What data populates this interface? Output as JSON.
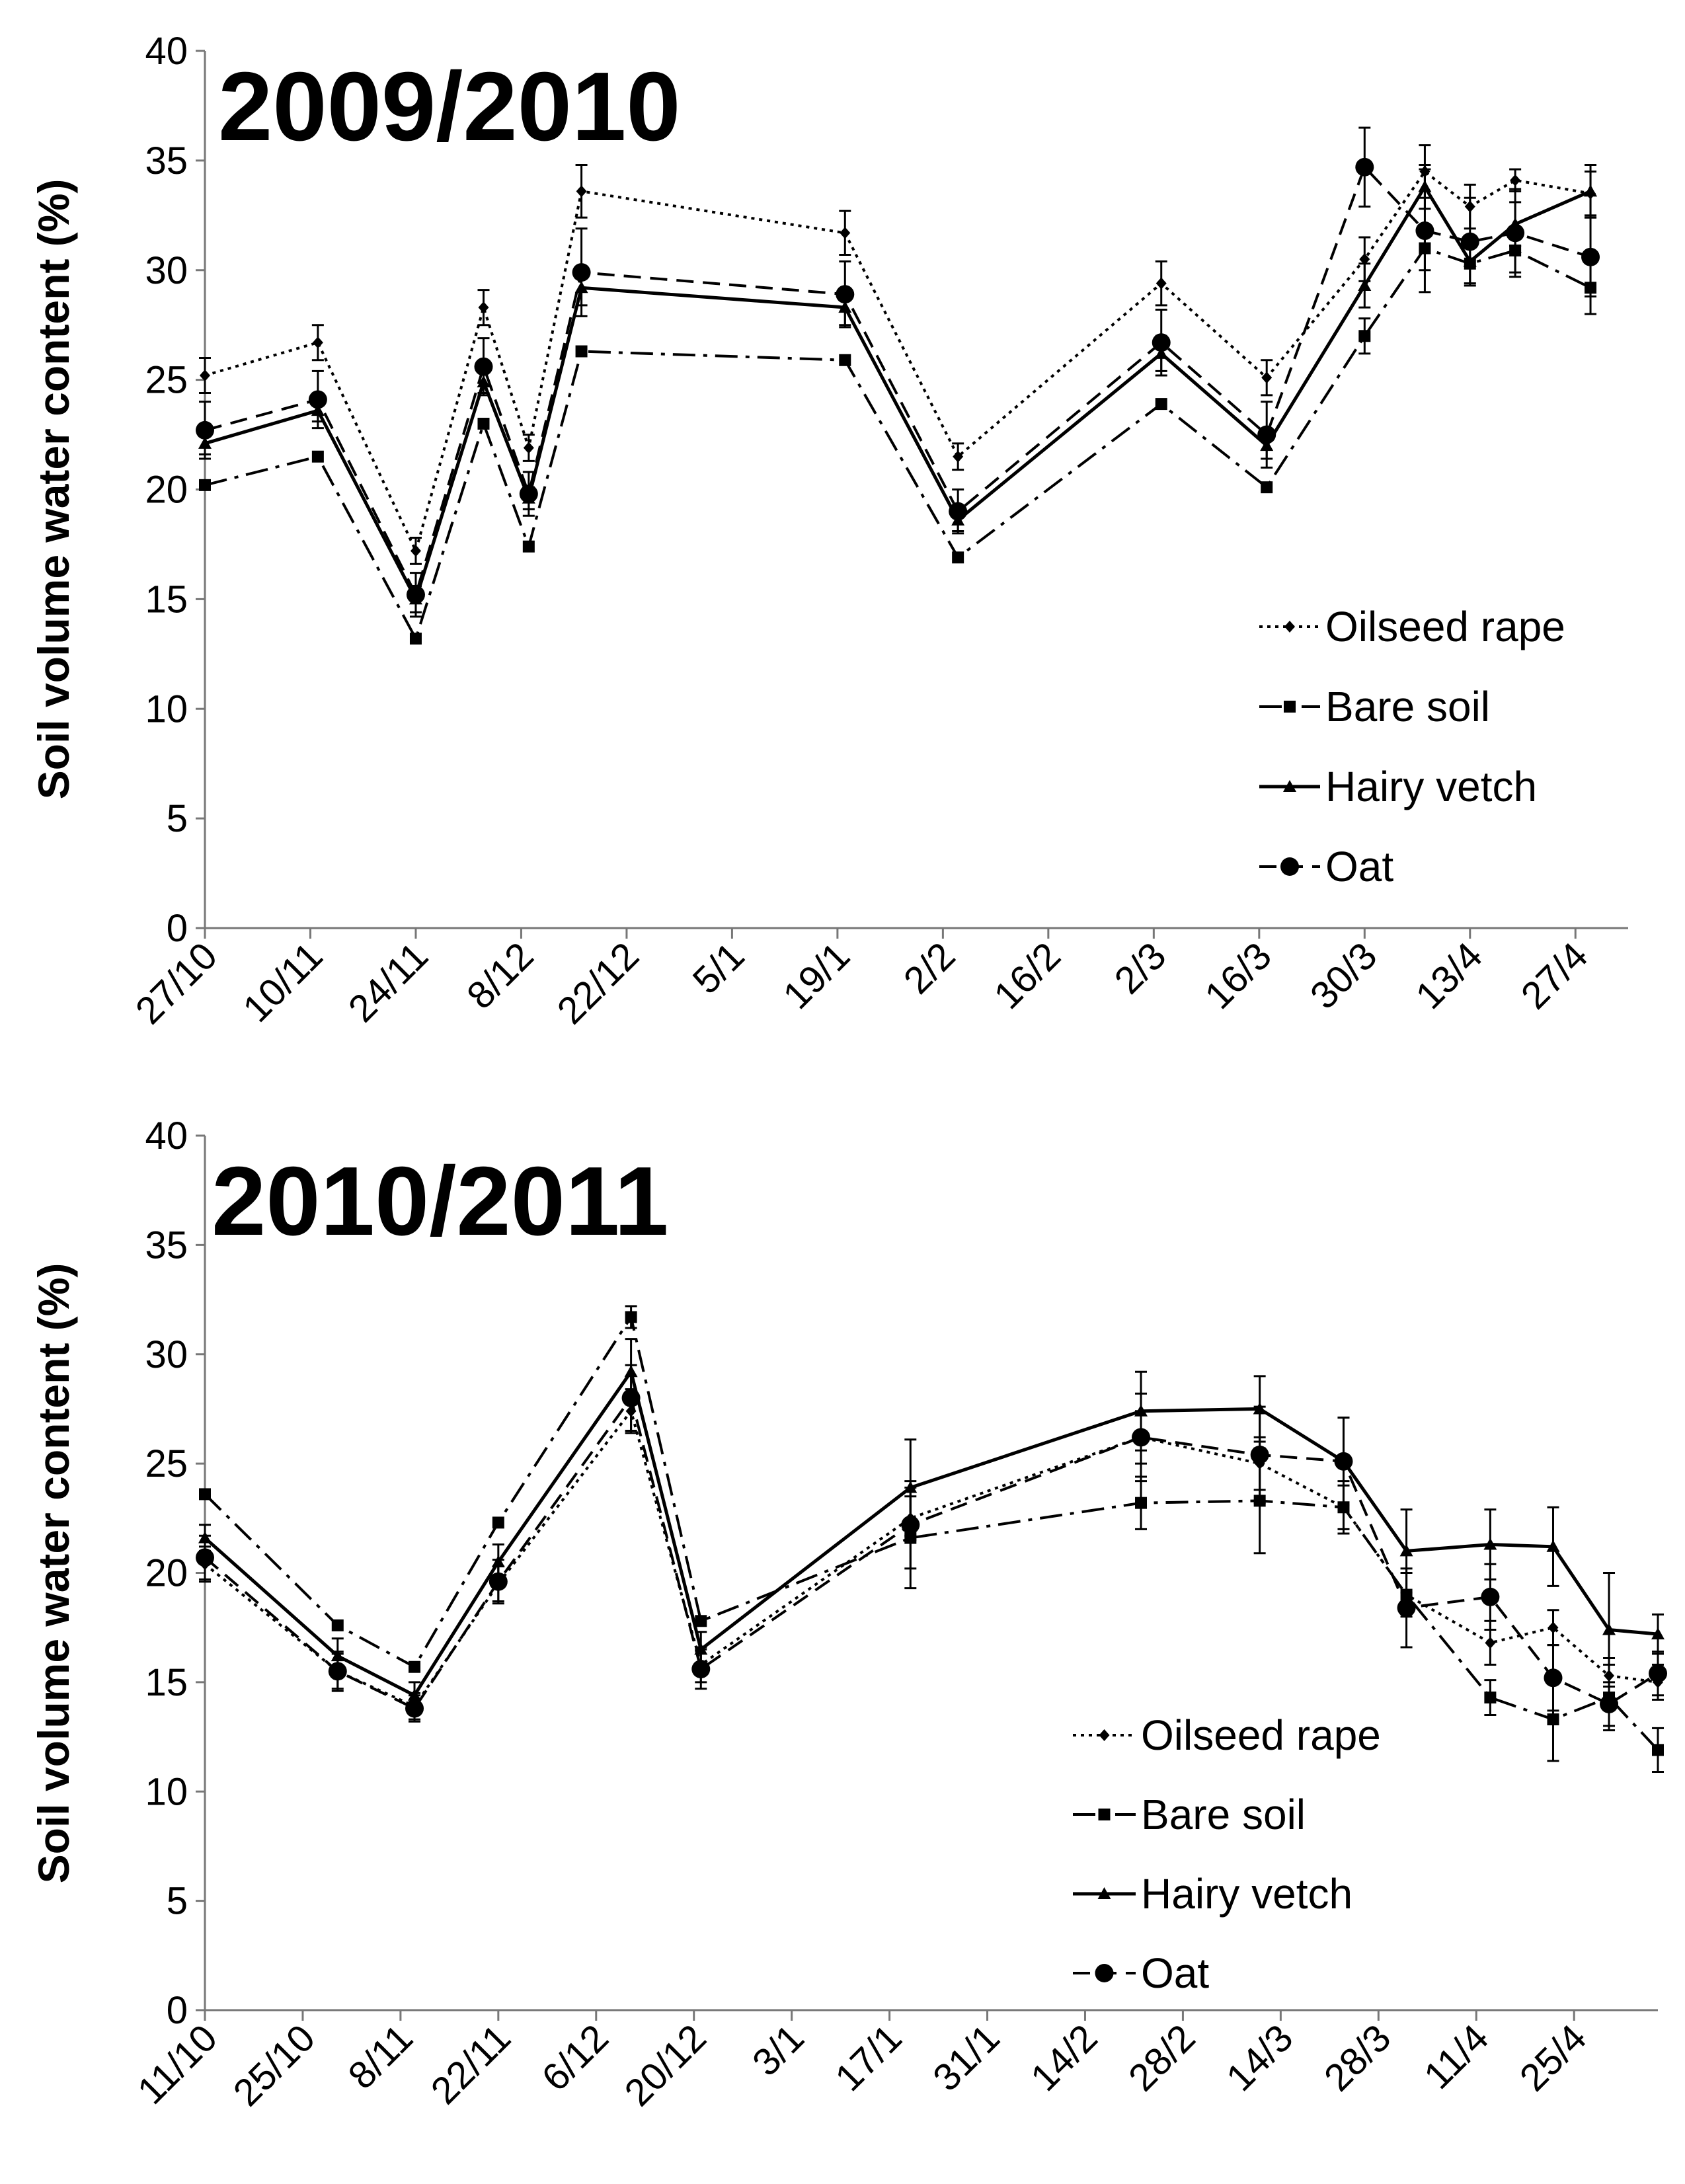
{
  "figure_label": "Soil volume water content time series for two seasons",
  "chart_data": [
    {
      "type": "line",
      "title": "2009/2010",
      "ylabel": "Soil volume water content (%)",
      "xlabel": "",
      "ylim": [
        0,
        40
      ],
      "yticks": [
        "0",
        "5",
        "10",
        "15",
        "20",
        "25",
        "30",
        "35",
        "40"
      ],
      "xlim": [
        0,
        189
      ],
      "xticks": [
        {
          "label": "27/10",
          "x": 0
        },
        {
          "label": "10/11",
          "x": 14
        },
        {
          "label": "24/11",
          "x": 28
        },
        {
          "label": "8/12",
          "x": 42
        },
        {
          "label": "22/12",
          "x": 56
        },
        {
          "label": "5/1",
          "x": 70
        },
        {
          "label": "19/1",
          "x": 84
        },
        {
          "label": "2/2",
          "x": 98
        },
        {
          "label": "16/2",
          "x": 112
        },
        {
          "label": "2/3",
          "x": 126
        },
        {
          "label": "16/3",
          "x": 140
        },
        {
          "label": "30/3",
          "x": 154
        },
        {
          "label": "13/4",
          "x": 168
        },
        {
          "label": "27/4",
          "x": 182
        }
      ],
      "x": [
        0,
        15,
        28,
        37,
        43,
        50,
        85,
        100,
        127,
        141,
        154,
        162,
        168,
        174,
        184
      ],
      "series": [
        {
          "name": "Oilseed rape",
          "marker": "diamond",
          "dash": "dotted",
          "values": [
            25.2,
            26.7,
            17.2,
            28.3,
            21.9,
            33.6,
            31.7,
            21.5,
            29.4,
            25.1,
            30.5,
            34.5,
            32.9,
            34.1,
            33.5
          ],
          "errors": [
            0.8,
            0.8,
            0.6,
            0.8,
            0.6,
            1.2,
            1.0,
            0.6,
            1.0,
            0.8,
            1.0,
            1.2,
            1.0,
            0.5,
            1.0
          ]
        },
        {
          "name": "Bare soil",
          "marker": "square",
          "dash": "dashdot",
          "values": [
            20.2,
            21.5,
            13.2,
            23.0,
            17.4,
            26.3,
            25.9,
            16.9,
            23.9,
            20.1,
            27.0,
            31.0,
            30.3,
            30.9,
            29.2
          ],
          "errors": [
            0,
            0,
            0,
            0,
            0,
            0,
            0,
            0,
            0,
            0,
            0.8,
            1.0,
            0,
            1.0,
            1.2
          ]
        },
        {
          "name": "Hairy vetch",
          "marker": "triangle",
          "dash": "solid",
          "values": [
            22.1,
            23.6,
            15.0,
            24.9,
            19.6,
            29.2,
            28.3,
            18.6,
            26.2,
            22.0,
            29.3,
            33.8,
            30.4,
            32.1,
            33.6
          ],
          "errors": [
            0.5,
            0.5,
            0.6,
            0.5,
            0.5,
            0.8,
            0.8,
            0.5,
            0.8,
            0.6,
            1.0,
            1.0,
            1.0,
            1.0,
            1.2
          ]
        },
        {
          "name": "Oat",
          "marker": "circle",
          "dash": "dashed",
          "values": [
            22.7,
            24.1,
            15.2,
            25.6,
            19.8,
            29.9,
            28.9,
            19.0,
            26.7,
            22.5,
            34.7,
            31.8,
            31.3,
            31.7,
            30.6
          ],
          "errors": [
            1.3,
            1.3,
            1.0,
            1.3,
            1.0,
            2.0,
            1.5,
            1.0,
            1.5,
            1.5,
            1.8,
            2.8,
            2.0,
            2.0,
            1.8
          ]
        }
      ],
      "legend": [
        "Oilseed rape",
        "Bare soil",
        "Hairy vetch",
        "Oat"
      ],
      "legend_position": "lower-right",
      "grid": false
    },
    {
      "type": "line",
      "title": "2010/2011",
      "ylabel": "Soil volume water content (%)",
      "xlabel": "",
      "ylim": [
        0,
        40
      ],
      "yticks": [
        "0",
        "5",
        "10",
        "15",
        "20",
        "25",
        "30",
        "35",
        "40"
      ],
      "xlim": [
        0,
        208
      ],
      "xticks": [
        {
          "label": "11/10",
          "x": 0
        },
        {
          "label": "25/10",
          "x": 14
        },
        {
          "label": "8/11",
          "x": 28
        },
        {
          "label": "22/11",
          "x": 42
        },
        {
          "label": "6/12",
          "x": 56
        },
        {
          "label": "20/12",
          "x": 70
        },
        {
          "label": "3/1",
          "x": 84
        },
        {
          "label": "17/1",
          "x": 98
        },
        {
          "label": "31/1",
          "x": 112
        },
        {
          "label": "14/2",
          "x": 126
        },
        {
          "label": "28/2",
          "x": 140
        },
        {
          "label": "14/3",
          "x": 154
        },
        {
          "label": "28/3",
          "x": 168
        },
        {
          "label": "11/4",
          "x": 182
        },
        {
          "label": "25/4",
          "x": 196
        }
      ],
      "x": [
        0,
        19,
        30,
        42,
        61,
        71,
        101,
        134,
        151,
        163,
        172,
        184,
        193,
        201,
        208
      ],
      "series": [
        {
          "name": "Oilseed rape",
          "marker": "diamond",
          "dash": "dotted",
          "values": [
            20.4,
            15.5,
            13.9,
            19.5,
            27.4,
            15.8,
            22.5,
            26.2,
            25.0,
            23.0,
            19.0,
            16.8,
            17.5,
            15.3,
            15.0
          ],
          "errors": [
            0.8,
            0.8,
            0.6,
            0.8,
            1.0,
            0.8,
            1.0,
            1.2,
            1.2,
            1.0,
            1.0,
            1.0,
            0.8,
            0.8,
            0.8
          ]
        },
        {
          "name": "Bare soil",
          "marker": "square",
          "dash": "dashdot",
          "values": [
            23.6,
            17.6,
            15.7,
            22.3,
            31.7,
            17.8,
            21.6,
            23.2,
            23.3,
            23.0,
            19.0,
            14.3,
            13.3,
            14.3,
            11.9
          ],
          "errors": [
            0,
            0,
            0,
            0,
            0.5,
            0,
            2.3,
            1.2,
            2.4,
            1.2,
            0,
            0.8,
            1.9,
            1.5,
            1.0
          ]
        },
        {
          "name": "Hairy vetch",
          "marker": "triangle",
          "dash": "solid",
          "values": [
            21.6,
            16.2,
            14.4,
            20.5,
            29.2,
            16.5,
            23.9,
            27.4,
            27.5,
            25.1,
            21.0,
            21.3,
            21.2,
            17.4,
            17.2
          ],
          "errors": [
            0.6,
            0.8,
            0.6,
            0.8,
            1.5,
            0.8,
            2.2,
            1.8,
            1.5,
            2.0,
            1.9,
            1.6,
            1.8,
            2.6,
            0.9
          ]
        },
        {
          "name": "Oat",
          "marker": "circle",
          "dash": "dashed",
          "values": [
            20.7,
            15.5,
            13.8,
            19.6,
            28.0,
            15.6,
            22.2,
            26.2,
            25.4,
            25.1,
            18.4,
            18.9,
            15.2,
            14.0,
            15.4
          ],
          "errors": [
            1.0,
            0.9,
            0.6,
            1.0,
            1.5,
            0.9,
            2.0,
            2.0,
            2.2,
            2.0,
            1.8,
            1.5,
            1.5,
            1.0,
            1.0
          ]
        }
      ],
      "legend": [
        "Oilseed rape",
        "Bare soil",
        "Hairy vetch",
        "Oat"
      ],
      "legend_position": "lower-right",
      "grid": false
    }
  ]
}
